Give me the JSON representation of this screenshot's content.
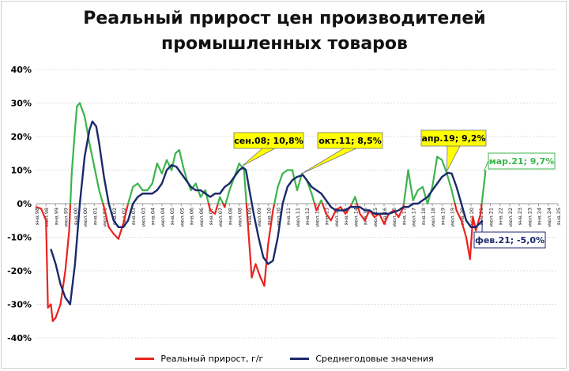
{
  "title_line1": "Реальный прирост цен производителей",
  "title_line2": "промышленных товаров",
  "colors": {
    "real": "#e8231f",
    "real_positive": "#3cb44b",
    "average": "#1b2a6b",
    "callout": "#ffff00"
  },
  "chart_data": {
    "type": "line",
    "title": "Реальный прирост цен производителей промышленных товаров",
    "y_unit": "%",
    "ylim": [
      -40,
      40
    ],
    "y_ticks": [
      "40%",
      "30%",
      "20%",
      "10%",
      "0%",
      "-10%",
      "-20%",
      "-30%",
      "-40%"
    ],
    "grid": true,
    "legend_position": "bottom",
    "x_ticks": [
      "янв.98",
      "июл.98",
      "янв.99",
      "июл.99",
      "янв.00",
      "июл.00",
      "янв.01",
      "июл.01",
      "янв.02",
      "июл.02",
      "янв.03",
      "июл.03",
      "янв.04",
      "июл.04",
      "янв.05",
      "июл.05",
      "янв.06",
      "июл.06",
      "янв.07",
      "июл.07",
      "янв.08",
      "июл.08",
      "янв.09",
      "июл.09",
      "янв.10",
      "июл.10",
      "янв.11",
      "июл.11",
      "янв.12",
      "июл.12",
      "янв.13",
      "июл.13",
      "янв.14",
      "июл.14",
      "янв.15",
      "июл.15",
      "янв.16",
      "июл.16",
      "янв.17",
      "июл.17",
      "янв.18",
      "июл.18",
      "янв.19",
      "июл.19",
      "янв.20",
      "июл.20",
      "янв.21",
      "июл.21",
      "янв.22",
      "июл.22",
      "янв.23",
      "июл.23",
      "янв.24",
      "июл.24",
      "янв.25"
    ],
    "series": [
      {
        "name": "Реальный прирост, г/г",
        "note": "red below 0, green above 0",
        "points": [
          [
            1998.0,
            -1
          ],
          [
            1998.25,
            -1.5
          ],
          [
            1998.5,
            -5
          ],
          [
            1998.6,
            -31
          ],
          [
            1998.75,
            -30
          ],
          [
            1998.85,
            -35
          ],
          [
            1999.0,
            -34
          ],
          [
            1999.25,
            -30
          ],
          [
            1999.5,
            -20
          ],
          [
            1999.7,
            -8
          ],
          [
            1999.83,
            9
          ],
          [
            2000.0,
            22
          ],
          [
            2000.1,
            29
          ],
          [
            2000.25,
            30
          ],
          [
            2000.5,
            26
          ],
          [
            2000.75,
            18
          ],
          [
            2001.0,
            11
          ],
          [
            2001.25,
            4
          ],
          [
            2001.5,
            -1
          ],
          [
            2001.75,
            -7
          ],
          [
            2002.0,
            -9
          ],
          [
            2002.25,
            -10.5
          ],
          [
            2002.5,
            -6
          ],
          [
            2002.75,
            0
          ],
          [
            2003.0,
            5
          ],
          [
            2003.25,
            6
          ],
          [
            2003.5,
            4
          ],
          [
            2003.75,
            4
          ],
          [
            2004.0,
            6
          ],
          [
            2004.25,
            12
          ],
          [
            2004.5,
            9
          ],
          [
            2004.75,
            13
          ],
          [
            2005.0,
            10
          ],
          [
            2005.2,
            15
          ],
          [
            2005.4,
            16
          ],
          [
            2005.6,
            11
          ],
          [
            2005.8,
            7
          ],
          [
            2006.0,
            4
          ],
          [
            2006.25,
            6
          ],
          [
            2006.5,
            2
          ],
          [
            2006.75,
            4
          ],
          [
            2007.0,
            -2
          ],
          [
            2007.25,
            -3
          ],
          [
            2007.5,
            2
          ],
          [
            2007.75,
            -1
          ],
          [
            2008.0,
            4
          ],
          [
            2008.25,
            8
          ],
          [
            2008.5,
            12
          ],
          [
            2008.75,
            10
          ],
          [
            2009.0,
            -10
          ],
          [
            2009.15,
            -22
          ],
          [
            2009.35,
            -18
          ],
          [
            2009.6,
            -22
          ],
          [
            2009.8,
            -24.5
          ],
          [
            2010.0,
            -12
          ],
          [
            2010.25,
            -2
          ],
          [
            2010.5,
            5
          ],
          [
            2010.75,
            9
          ],
          [
            2011.0,
            10
          ],
          [
            2011.25,
            10
          ],
          [
            2011.5,
            4
          ],
          [
            2011.75,
            9
          ],
          [
            2012.0,
            7
          ],
          [
            2012.25,
            3
          ],
          [
            2012.5,
            -2
          ],
          [
            2012.75,
            1
          ],
          [
            2013.0,
            -3
          ],
          [
            2013.25,
            -5
          ],
          [
            2013.5,
            -2
          ],
          [
            2013.75,
            -1
          ],
          [
            2014.0,
            -3
          ],
          [
            2014.25,
            -1
          ],
          [
            2014.5,
            2
          ],
          [
            2014.75,
            -3
          ],
          [
            2015.0,
            -5
          ],
          [
            2015.25,
            -2
          ],
          [
            2015.5,
            -4
          ],
          [
            2015.75,
            -3
          ],
          [
            2016.0,
            -6
          ],
          [
            2016.25,
            -3
          ],
          [
            2016.5,
            -2
          ],
          [
            2016.75,
            -4
          ],
          [
            2017.0,
            -1
          ],
          [
            2017.25,
            10
          ],
          [
            2017.5,
            1
          ],
          [
            2017.75,
            4
          ],
          [
            2018.0,
            5
          ],
          [
            2018.25,
            0
          ],
          [
            2018.5,
            5
          ],
          [
            2018.75,
            14
          ],
          [
            2019.0,
            13
          ],
          [
            2019.25,
            9
          ],
          [
            2019.5,
            4
          ],
          [
            2019.75,
            -2
          ],
          [
            2020.0,
            -5
          ],
          [
            2020.25,
            -10
          ],
          [
            2020.45,
            -16.5
          ],
          [
            2020.6,
            -4
          ],
          [
            2020.75,
            -8
          ],
          [
            2021.0,
            -3
          ],
          [
            2021.25,
            9.7
          ]
        ]
      },
      {
        "name": "Среднегодовые значения",
        "points": [
          [
            1998.75,
            -13.5
          ],
          [
            1999.0,
            -18
          ],
          [
            1999.25,
            -24
          ],
          [
            1999.5,
            -28
          ],
          [
            1999.75,
            -30
          ],
          [
            2000.0,
            -18
          ],
          [
            2000.25,
            0
          ],
          [
            2000.5,
            14
          ],
          [
            2000.75,
            22
          ],
          [
            2000.9,
            24.5
          ],
          [
            2001.1,
            23
          ],
          [
            2001.25,
            18
          ],
          [
            2001.5,
            8
          ],
          [
            2001.75,
            0
          ],
          [
            2002.0,
            -5
          ],
          [
            2002.25,
            -7
          ],
          [
            2002.5,
            -7
          ],
          [
            2002.75,
            -5
          ],
          [
            2003.0,
            0
          ],
          [
            2003.25,
            2
          ],
          [
            2003.5,
            3
          ],
          [
            2003.75,
            3
          ],
          [
            2004.0,
            3
          ],
          [
            2004.25,
            4
          ],
          [
            2004.5,
            6
          ],
          [
            2004.75,
            10
          ],
          [
            2005.0,
            11.5
          ],
          [
            2005.25,
            11
          ],
          [
            2005.5,
            9
          ],
          [
            2005.75,
            7
          ],
          [
            2006.0,
            5
          ],
          [
            2006.25,
            4
          ],
          [
            2006.5,
            4
          ],
          [
            2006.75,
            3
          ],
          [
            2007.0,
            2
          ],
          [
            2007.25,
            3
          ],
          [
            2007.5,
            3
          ],
          [
            2007.75,
            5
          ],
          [
            2008.0,
            6
          ],
          [
            2008.25,
            8
          ],
          [
            2008.5,
            10
          ],
          [
            2008.7,
            10.8
          ],
          [
            2008.85,
            10
          ],
          [
            2009.0,
            5
          ],
          [
            2009.25,
            -3
          ],
          [
            2009.5,
            -10
          ],
          [
            2009.75,
            -16
          ],
          [
            2010.0,
            -18
          ],
          [
            2010.25,
            -17
          ],
          [
            2010.5,
            -10
          ],
          [
            2010.75,
            0
          ],
          [
            2011.0,
            5
          ],
          [
            2011.25,
            7
          ],
          [
            2011.5,
            8
          ],
          [
            2011.8,
            8.5
          ],
          [
            2012.0,
            7
          ],
          [
            2012.25,
            5
          ],
          [
            2012.5,
            4
          ],
          [
            2012.75,
            3
          ],
          [
            2013.0,
            1
          ],
          [
            2013.25,
            -1
          ],
          [
            2013.5,
            -2
          ],
          [
            2013.75,
            -2
          ],
          [
            2014.0,
            -2
          ],
          [
            2014.25,
            -1
          ],
          [
            2014.5,
            -1
          ],
          [
            2014.75,
            -1
          ],
          [
            2015.0,
            -2
          ],
          [
            2015.25,
            -2
          ],
          [
            2015.5,
            -3
          ],
          [
            2015.75,
            -3
          ],
          [
            2016.0,
            -3
          ],
          [
            2016.25,
            -3
          ],
          [
            2016.5,
            -2.5
          ],
          [
            2016.75,
            -2
          ],
          [
            2017.0,
            -1
          ],
          [
            2017.25,
            -1
          ],
          [
            2017.5,
            0
          ],
          [
            2017.75,
            0
          ],
          [
            2018.0,
            1
          ],
          [
            2018.25,
            2
          ],
          [
            2018.5,
            4
          ],
          [
            2018.75,
            6
          ],
          [
            2019.0,
            8
          ],
          [
            2019.3,
            9.2
          ],
          [
            2019.5,
            9
          ],
          [
            2019.75,
            5
          ],
          [
            2020.0,
            0
          ],
          [
            2020.25,
            -5
          ],
          [
            2020.5,
            -7
          ],
          [
            2020.75,
            -7
          ],
          [
            2021.1,
            -5.0
          ]
        ]
      }
    ],
    "annotations": [
      {
        "text": "сен.08; 10,8%",
        "x": 2008.67,
        "y": 10.8
      },
      {
        "text": "окт.11; 8,5%",
        "x": 2011.75,
        "y": 8.5
      },
      {
        "text": "апр.19; 9,2%",
        "x": 2019.25,
        "y": 9.2
      },
      {
        "text": "мар.21; 9,7%",
        "x": 2021.17,
        "y": 9.7
      },
      {
        "text": "фев.21; -5,0%",
        "x": 2021.08,
        "y": -5.0
      }
    ]
  },
  "legend": {
    "real_label": "Реальный прирост, г/г",
    "avg_label": "Среднегодовые значения"
  }
}
